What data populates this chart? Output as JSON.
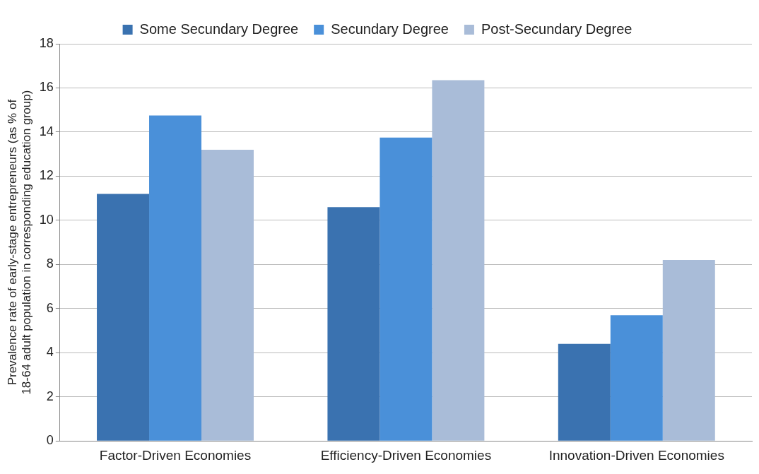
{
  "chart_data": {
    "type": "bar",
    "ylabel": "Prevalence rate of early-stage entrepreneurs (as % of 18-64 adult population in corresponding education group)",
    "categories": [
      "Factor-Driven Economies",
      "Efficiency-Driven Economies",
      "Innovation-Driven Economies"
    ],
    "series": [
      {
        "name": "Some Secundary Degree",
        "color": "#3a72b0",
        "values": [
          11.2,
          10.6,
          4.4
        ]
      },
      {
        "name": "Secundary Degree",
        "color": "#4a90d9",
        "values": [
          14.75,
          13.75,
          5.7
        ]
      },
      {
        "name": "Post-Secundary Degree",
        "color": "#a9bcd8",
        "values": [
          13.2,
          16.35,
          8.2
        ]
      }
    ],
    "ylim": [
      0,
      18
    ],
    "yticks": [
      0,
      2,
      4,
      6,
      8,
      10,
      12,
      14,
      16,
      18
    ],
    "grid": "y",
    "legend": "top"
  }
}
